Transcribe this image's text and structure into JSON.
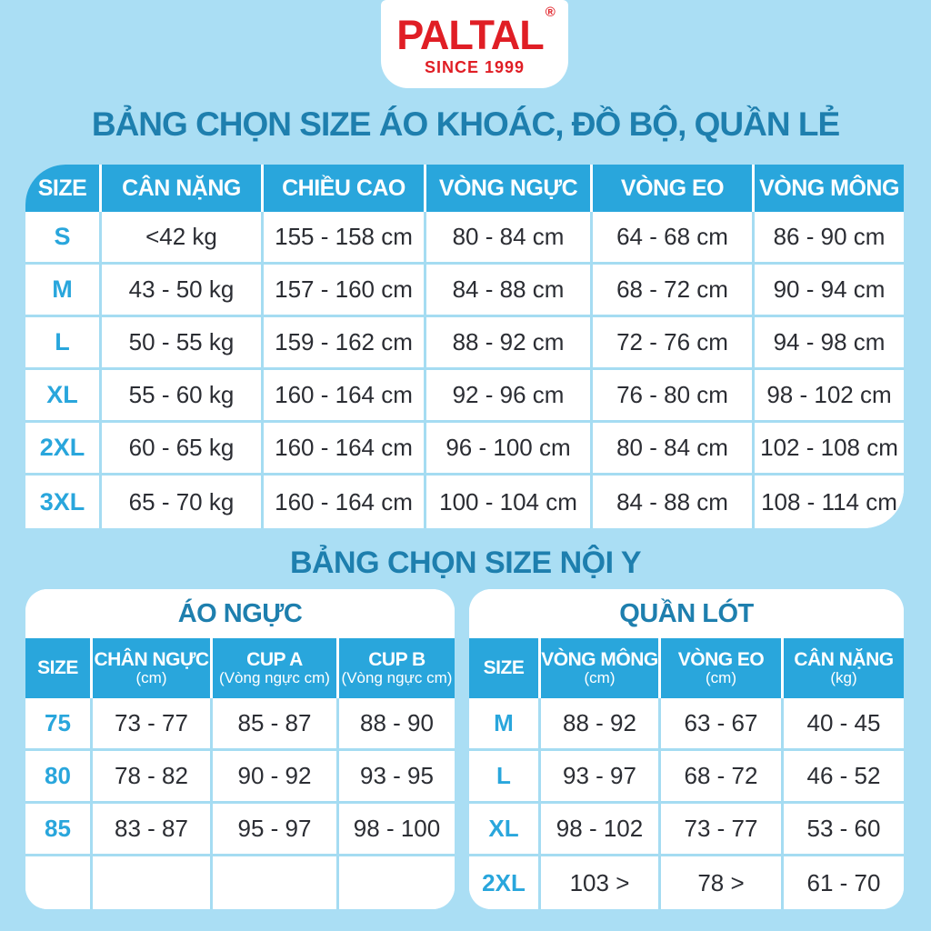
{
  "brand": {
    "name": "PALTAL",
    "registered": "®",
    "tagline": "SINCE 1999",
    "logo_color": "#e01e25"
  },
  "colors": {
    "background": "#aadef4",
    "header_blue": "#29a6dc",
    "title_teal": "#1e7fae",
    "border_cyan": "#a5dcf2",
    "text_dark": "#2b2d33"
  },
  "section1": {
    "title": "BẢNG CHỌN SIZE ÁO KHOÁC, ĐỒ BỘ, QUẦN LẺ",
    "table": {
      "headers": [
        "SIZE",
        "CÂN NẶNG",
        "CHIỀU CAO",
        "VÒNG NGỰC",
        "VÒNG EO",
        "VÒNG MÔNG"
      ],
      "rows": [
        {
          "size": "S",
          "cells": [
            "<42 kg",
            "155 - 158 cm",
            "80 - 84 cm",
            "64 - 68 cm",
            "86 - 90 cm"
          ]
        },
        {
          "size": "M",
          "cells": [
            "43 - 50 kg",
            "157 - 160 cm",
            "84 - 88 cm",
            "68 - 72 cm",
            "90 - 94 cm"
          ]
        },
        {
          "size": "L",
          "cells": [
            "50 - 55 kg",
            "159 - 162 cm",
            "88 - 92 cm",
            "72 - 76 cm",
            "94 - 98 cm"
          ]
        },
        {
          "size": "XL",
          "cells": [
            "55 - 60 kg",
            "160 - 164 cm",
            "92 - 96 cm",
            "76 - 80 cm",
            "98 - 102 cm"
          ]
        },
        {
          "size": "2XL",
          "cells": [
            "60 - 65 kg",
            "160 - 164 cm",
            "96 - 100 cm",
            "80 - 84 cm",
            "102 - 108 cm"
          ]
        },
        {
          "size": "3XL",
          "cells": [
            "65 - 70 kg",
            "160 - 164 cm",
            "100 - 104 cm",
            "84 - 88 cm",
            "108 - 114 cm"
          ]
        }
      ]
    }
  },
  "section2": {
    "title": "BẢNG CHỌN SIZE NỘI Y",
    "bra_table": {
      "title": "ÁO NGỰC",
      "headers": [
        {
          "main": "SIZE",
          "sub": ""
        },
        {
          "main": "CHÂN NGỰC",
          "sub": "(cm)"
        },
        {
          "main": "CUP A",
          "sub": "(Vòng ngực cm)"
        },
        {
          "main": "CUP B",
          "sub": "(Vòng ngực cm)"
        }
      ],
      "rows": [
        {
          "size": "75",
          "cells": [
            "73 - 77",
            "85 - 87",
            "88 - 90"
          ]
        },
        {
          "size": "80",
          "cells": [
            "78 - 82",
            "90 - 92",
            "93 - 95"
          ]
        },
        {
          "size": "85",
          "cells": [
            "83 - 87",
            "95 - 97",
            "98 - 100"
          ]
        },
        {
          "size": "",
          "cells": [
            "",
            "",
            ""
          ]
        }
      ]
    },
    "panty_table": {
      "title": "QUẦN LÓT",
      "headers": [
        {
          "main": "SIZE",
          "sub": ""
        },
        {
          "main": "VÒNG MÔNG",
          "sub": "(cm)"
        },
        {
          "main": "VÒNG EO",
          "sub": "(cm)"
        },
        {
          "main": "CÂN NẶNG",
          "sub": "(kg)"
        }
      ],
      "rows": [
        {
          "size": "M",
          "cells": [
            "88 - 92",
            "63 - 67",
            "40 - 45"
          ]
        },
        {
          "size": "L",
          "cells": [
            "93 - 97",
            "68 - 72",
            "46 - 52"
          ]
        },
        {
          "size": "XL",
          "cells": [
            "98 - 102",
            "73 - 77",
            "53 - 60"
          ]
        },
        {
          "size": "2XL",
          "cells": [
            "103 >",
            "78 >",
            "61 - 70"
          ]
        }
      ]
    }
  }
}
